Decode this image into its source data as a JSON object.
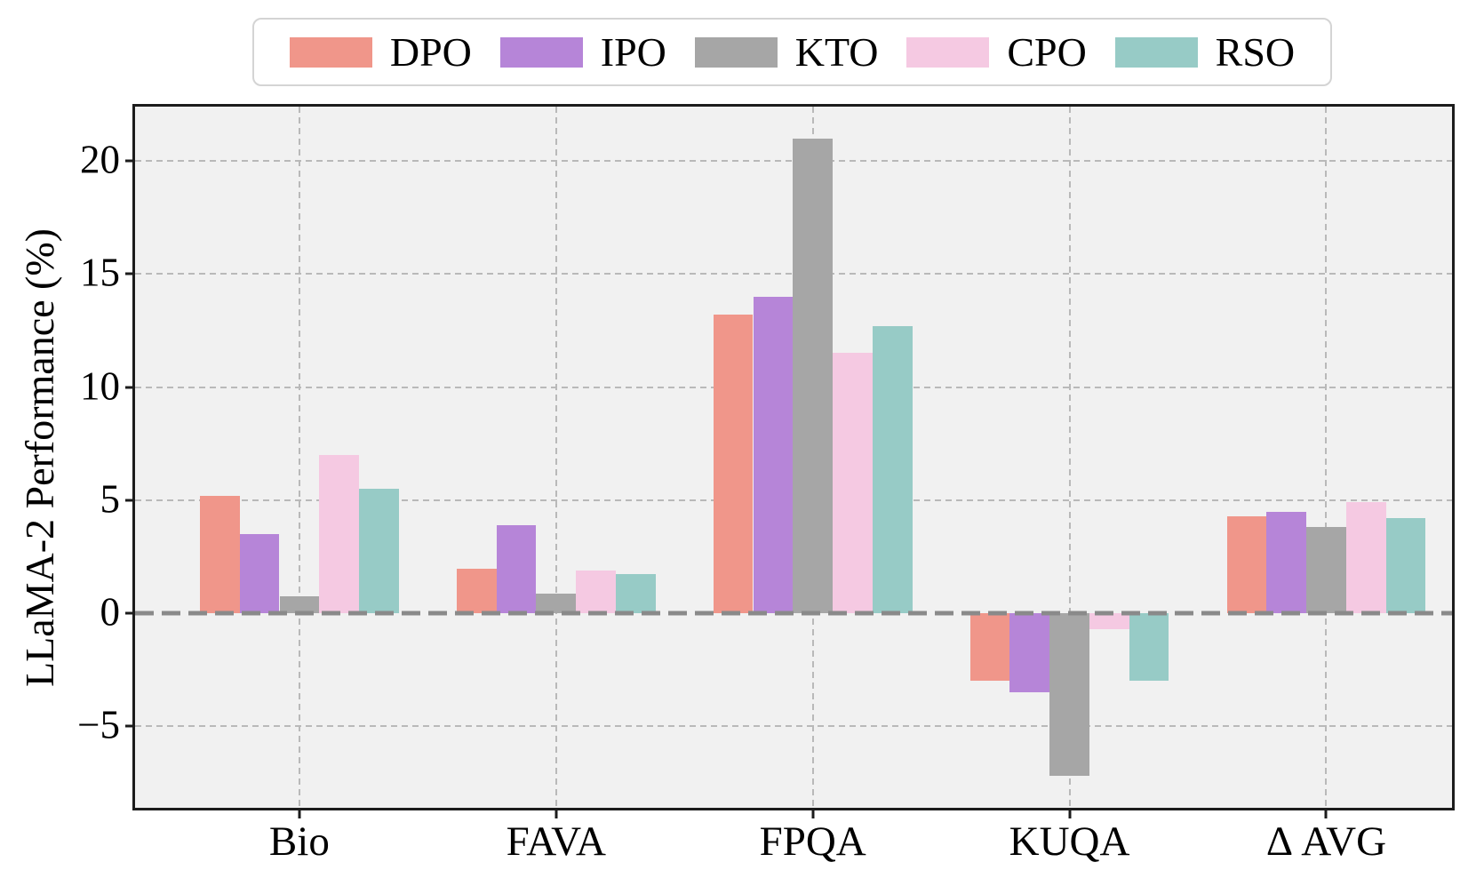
{
  "chart_data": {
    "type": "bar",
    "title": "",
    "xlabel": "",
    "ylabel": "LLaMA-2 Performance (%)",
    "categories": [
      "Bio",
      "FAVA",
      "FPQA",
      "KUQA",
      "Δ AVG"
    ],
    "series": [
      {
        "name": "DPO",
        "color": "#f0968a",
        "values": [
          5.2,
          1.95,
          13.2,
          -3.0,
          4.3
        ]
      },
      {
        "name": "IPO",
        "color": "#b685d8",
        "values": [
          3.5,
          3.9,
          14.0,
          -3.5,
          4.5
        ]
      },
      {
        "name": "KTO",
        "color": "#a6a6a6",
        "values": [
          0.75,
          0.85,
          21.0,
          -7.2,
          3.8
        ]
      },
      {
        "name": "CPO",
        "color": "#f5c9e2",
        "values": [
          7.0,
          1.9,
          11.5,
          -0.7,
          4.9
        ]
      },
      {
        "name": "RSO",
        "color": "#97cbc6",
        "values": [
          5.5,
          1.75,
          12.7,
          -3.0,
          4.2
        ]
      }
    ],
    "yticks": [
      -5,
      0,
      5,
      10,
      15,
      20
    ],
    "ylim": [
      -8.6,
      22.4
    ],
    "xlim": [
      -0.64,
      4.49
    ],
    "bar_width": 0.155,
    "grid": "dashed-both-axes",
    "zero_line": true,
    "zero_line_style": "thick-dashed",
    "zero_line_color": "#8a8a8a",
    "grid_color": "#b9b9b9",
    "plot_bg": "#f1f1f1",
    "legend_position": "top-center-outside",
    "minus_sign": "−"
  }
}
